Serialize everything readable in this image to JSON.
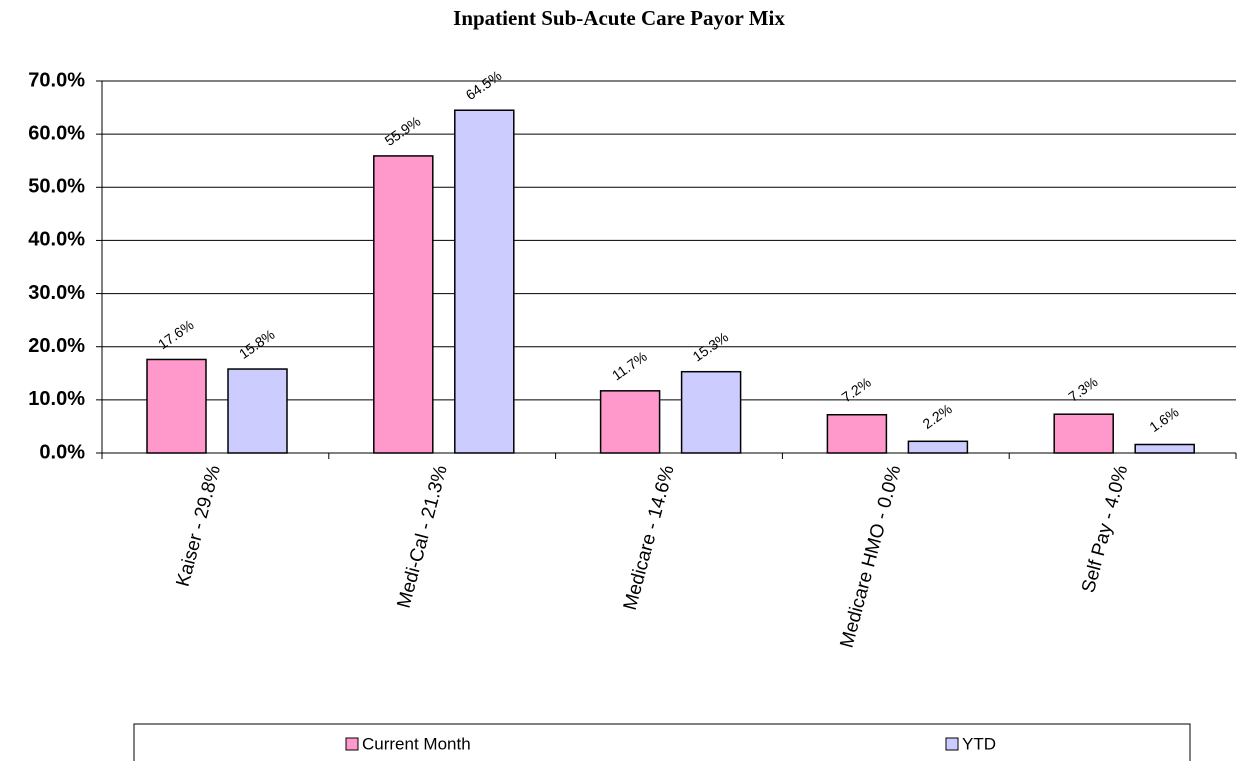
{
  "chart_data": {
    "type": "bar",
    "title": "Inpatient Sub-Acute Care Payor Mix",
    "categories": [
      "Kaiser - 29.8%",
      "Medi-Cal - 21.3%",
      "Medicare - 14.6%",
      "Medicare HMO - 0.0%",
      "Self Pay - 4.0%"
    ],
    "series": [
      {
        "name": "Current Month",
        "color": "#ff99cc",
        "values": [
          17.6,
          55.9,
          11.7,
          7.2,
          7.3
        ],
        "value_labels": [
          "17.6%",
          "55.9%",
          "11.7%",
          "7.2%",
          "7.3%"
        ]
      },
      {
        "name": "YTD",
        "color": "#ccccff",
        "values": [
          15.8,
          64.5,
          15.3,
          2.2,
          1.6
        ],
        "value_labels": [
          "15.8%",
          "64.5%",
          "15.3%",
          "2.2%",
          "1.6%"
        ]
      }
    ],
    "ylim": [
      0,
      70
    ],
    "yticks": [
      {
        "value": 0,
        "label": "0.0%"
      },
      {
        "value": 10,
        "label": "10.0%"
      },
      {
        "value": 20,
        "label": "20.0%"
      },
      {
        "value": 30,
        "label": "30.0%"
      },
      {
        "value": 40,
        "label": "40.0%"
      },
      {
        "value": 50,
        "label": "50.0%"
      },
      {
        "value": 60,
        "label": "60.0%"
      },
      {
        "value": 70,
        "label": "70.0%"
      }
    ],
    "grid": true,
    "legend": "bottom"
  }
}
